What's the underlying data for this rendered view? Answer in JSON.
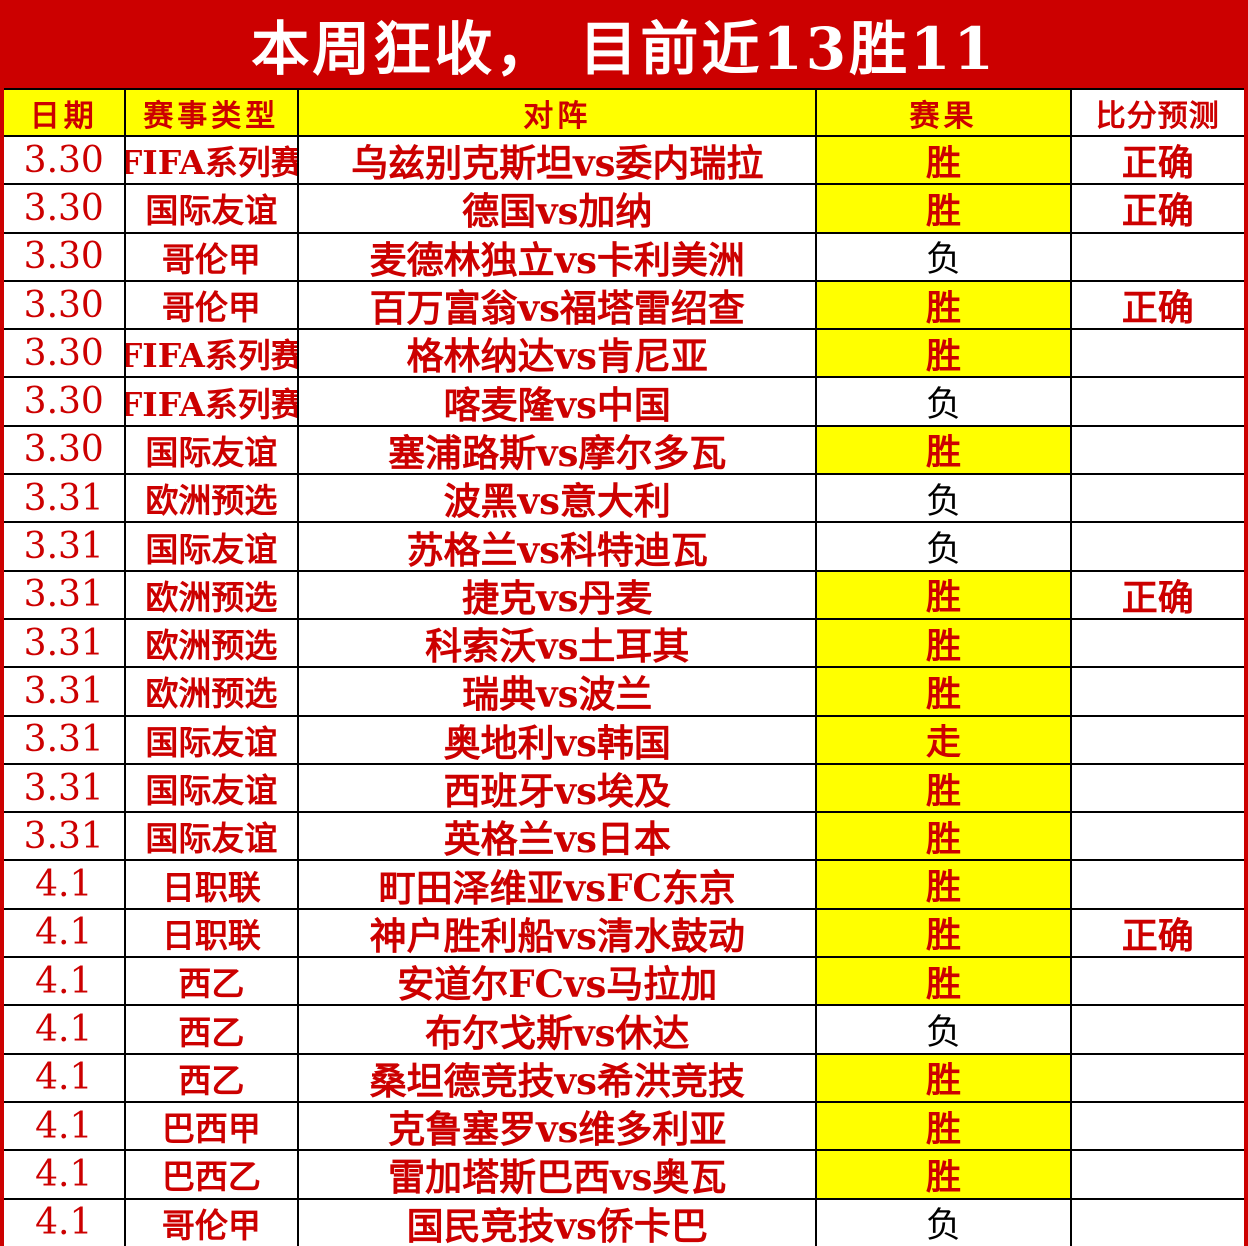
{
  "banner": {
    "title": "本周狂收， 目前近13胜11"
  },
  "colors": {
    "accent_red": "#cc0000",
    "highlight_yellow": "#ffff00",
    "loss_text": "#000000",
    "banner_text": "#ffffff"
  },
  "table": {
    "headers": [
      "日期",
      "赛事类型",
      "对阵",
      "赛果",
      "比分预测"
    ],
    "rows": [
      {
        "date": "3.30",
        "league": "FIFA系列赛",
        "match": "乌兹别克斯坦vs委内瑞拉",
        "result": "胜",
        "result_win": true,
        "prediction": "正确"
      },
      {
        "date": "3.30",
        "league": "国际友谊",
        "match": "德国vs加纳",
        "result": "胜",
        "result_win": true,
        "prediction": "正确"
      },
      {
        "date": "3.30",
        "league": "哥伦甲",
        "match": "麦德林独立vs卡利美洲",
        "result": "负",
        "result_win": false,
        "prediction": ""
      },
      {
        "date": "3.30",
        "league": "哥伦甲",
        "match": "百万富翁vs福塔雷绍查",
        "result": "胜",
        "result_win": true,
        "prediction": "正确"
      },
      {
        "date": "3.30",
        "league": "FIFA系列赛",
        "match": "格林纳达vs肯尼亚",
        "result": "胜",
        "result_win": true,
        "prediction": ""
      },
      {
        "date": "3.30",
        "league": "FIFA系列赛",
        "match": "喀麦隆vs中国",
        "result": "负",
        "result_win": false,
        "prediction": ""
      },
      {
        "date": "3.30",
        "league": "国际友谊",
        "match": "塞浦路斯vs摩尔多瓦",
        "result": "胜",
        "result_win": true,
        "prediction": ""
      },
      {
        "date": "3.31",
        "league": "欧洲预选",
        "match": "波黑vs意大利",
        "result": "负",
        "result_win": false,
        "prediction": ""
      },
      {
        "date": "3.31",
        "league": "国际友谊",
        "match": "苏格兰vs科特迪瓦",
        "result": "负",
        "result_win": false,
        "prediction": ""
      },
      {
        "date": "3.31",
        "league": "欧洲预选",
        "match": "捷克vs丹麦",
        "result": "胜",
        "result_win": true,
        "prediction": "正确"
      },
      {
        "date": "3.31",
        "league": "欧洲预选",
        "match": "科索沃vs土耳其",
        "result": "胜",
        "result_win": true,
        "prediction": ""
      },
      {
        "date": "3.31",
        "league": "欧洲预选",
        "match": "瑞典vs波兰",
        "result": "胜",
        "result_win": true,
        "prediction": ""
      },
      {
        "date": "3.31",
        "league": "国际友谊",
        "match": "奥地利vs韩国",
        "result": "走",
        "result_win": true,
        "prediction": ""
      },
      {
        "date": "3.31",
        "league": "国际友谊",
        "match": "西班牙vs埃及",
        "result": "胜",
        "result_win": true,
        "prediction": ""
      },
      {
        "date": "3.31",
        "league": "国际友谊",
        "match": "英格兰vs日本",
        "result": "胜",
        "result_win": true,
        "prediction": ""
      },
      {
        "date": "4.1",
        "league": "日职联",
        "match": "町田泽维亚vsFC东京",
        "result": "胜",
        "result_win": true,
        "prediction": ""
      },
      {
        "date": "4.1",
        "league": "日职联",
        "match": "神户胜利船vs清水鼓动",
        "result": "胜",
        "result_win": true,
        "prediction": "正确"
      },
      {
        "date": "4.1",
        "league": "西乙",
        "match": "安道尔FCvs马拉加",
        "result": "胜",
        "result_win": true,
        "prediction": ""
      },
      {
        "date": "4.1",
        "league": "西乙",
        "match": "布尔戈斯vs休达",
        "result": "负",
        "result_win": false,
        "prediction": ""
      },
      {
        "date": "4.1",
        "league": "西乙",
        "match": "桑坦德竞技vs希洪竞技",
        "result": "胜",
        "result_win": true,
        "prediction": ""
      },
      {
        "date": "4.1",
        "league": "巴西甲",
        "match": "克鲁塞罗vs维多利亚",
        "result": "胜",
        "result_win": true,
        "prediction": ""
      },
      {
        "date": "4.1",
        "league": "巴西乙",
        "match": "雷加塔斯巴西vs奥瓦",
        "result": "胜",
        "result_win": true,
        "prediction": ""
      },
      {
        "date": "4.1",
        "league": "哥伦甲",
        "match": "国民竞技vs侨卡巴",
        "result": "负",
        "result_win": false,
        "prediction": ""
      }
    ]
  }
}
